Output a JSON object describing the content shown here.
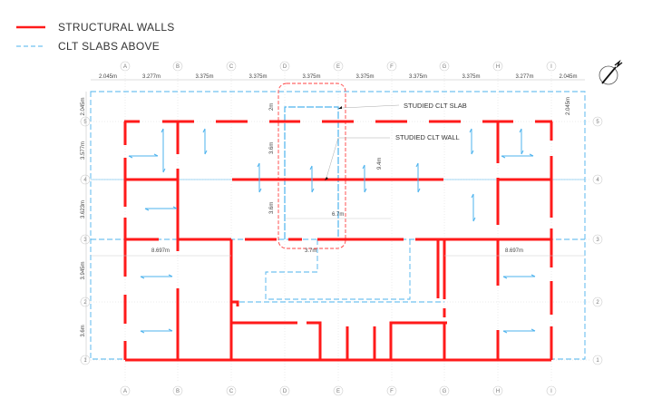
{
  "legend": {
    "structural_walls": "STRUCTURAL WALLS",
    "clt_slabs_above": "CLT SLABS ABOVE"
  },
  "colors": {
    "wall": "#ff1a1a",
    "slab": "#4db3ee",
    "highlight": "#ff4040",
    "grid": "#cccccc"
  },
  "grid": {
    "columns": [
      "A",
      "B",
      "C",
      "D",
      "E",
      "F",
      "G",
      "H",
      "I"
    ],
    "rows": [
      "5",
      "4",
      "3",
      "2",
      "1"
    ]
  },
  "dimensions": {
    "top": [
      "2.045m",
      "3.277m",
      "3.375m",
      "3.375m",
      "3.375m",
      "3.375m",
      "3.375m",
      "3.375m",
      "3.277m",
      "2.045m"
    ],
    "left": [
      "2.045m",
      "3.577m",
      "3.623m",
      "3.945m",
      "3.6m"
    ],
    "right": "2.045m",
    "inner": {
      "slab_depth": "2m",
      "wall_upper": "3.6m",
      "wall_lower": "3.6m",
      "height_total": "9.4m",
      "span": "6.7m",
      "width": "3.7m",
      "left_span": "8.697m",
      "right_span": "8.697m"
    }
  },
  "annotations": {
    "studied_slab": "STUDIED CLT SLAB",
    "studied_wall": "STUDIED CLT WALL"
  },
  "north_icon": "north-arrow-icon"
}
